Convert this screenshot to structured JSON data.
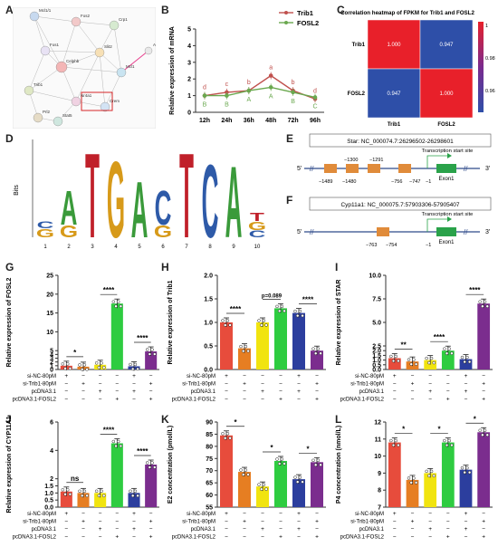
{
  "panel_labels": [
    "A",
    "B",
    "C",
    "D",
    "E",
    "F",
    "G",
    "H",
    "I",
    "J",
    "K",
    "L"
  ],
  "network": {
    "nodes": [
      "Mcl1/1",
      "Fos2",
      "Crp1",
      "Ace2b",
      "Fos1",
      "Slit2",
      "Celphb",
      "Mcl1",
      "Trib1",
      "Nr4a1",
      "Crem",
      "Prl2",
      "Stat5",
      "Egr1"
    ],
    "colors": {
      "edge": "#9a9a9a",
      "highlight_box": "#d62728",
      "highlight_edge": "#e83e8c"
    }
  },
  "gene_panel_c": [
    "Trib1",
    "FOSL2"
  ],
  "motif": {
    "ylabel": "Bits",
    "positions": [
      "1",
      "2",
      "3",
      "4",
      "5",
      "6",
      "7",
      "8",
      "9",
      "10"
    ]
  },
  "gene_struct": [
    {
      "title": "Star: NC_000074.7:26296502-26298601",
      "tss": "Transcription start site",
      "ends": [
        "5'",
        "3'"
      ],
      "exon": "Exon1",
      "labels_top": [
        "−1300",
        "−1291"
      ],
      "labels_bottom": [
        "−1489",
        "−1480",
        "−756",
        "−747",
        "−1"
      ]
    },
    {
      "title": "Cyp11a1: NC_000075.7:57903306-57905407",
      "tss": "Transcription start site",
      "ends": [
        "5'",
        "3'"
      ],
      "exon": "Exon1",
      "labels_bottom": [
        "−763",
        "−754",
        "−1"
      ]
    }
  ],
  "group_rows": {
    "labels_four": [
      "si-NC-80pM",
      "si-Trib1-80pM",
      "pcDNA3.1",
      "pcDNA3.1-FOSL2"
    ],
    "signs": [
      [
        "+",
        "−",
        "−",
        "−",
        "+",
        "−"
      ],
      [
        "−",
        "+",
        "−",
        "−",
        "−",
        "+"
      ],
      [
        "−",
        "−",
        "+",
        "−",
        "+",
        "−"
      ],
      [
        "−",
        "−",
        "−",
        "+",
        "−",
        "+"
      ]
    ]
  },
  "chart_data": [
    {
      "panel": "B",
      "type": "line",
      "x": [
        "12h",
        "24h",
        "36h",
        "48h",
        "72h",
        "96h"
      ],
      "ylabel": "Relative expression of mRNA",
      "ylim": [
        0,
        5
      ],
      "yticks": [
        "0",
        "1",
        "2",
        "3",
        "4",
        "5"
      ],
      "series": [
        {
          "name": "Trib1",
          "color": "#c0504d",
          "values": [
            1.0,
            1.2,
            1.3,
            2.2,
            1.3,
            0.8
          ],
          "letters": [
            "d",
            "c",
            "b",
            "a",
            "b",
            "d"
          ]
        },
        {
          "name": "FOSL2",
          "color": "#6aa84f",
          "values": [
            1.0,
            1.0,
            1.3,
            1.5,
            1.2,
            0.9
          ],
          "letters": [
            "B",
            "B",
            "A",
            "A",
            "B",
            "C"
          ]
        }
      ]
    },
    {
      "panel": "C",
      "type": "heatmap",
      "title": "Correlation heatmap of FPKM for Trib1 and FOSL2",
      "rows": [
        "Trib1",
        "FOSL2"
      ],
      "cols": [
        "Trib1",
        "FOSL2"
      ],
      "values": [
        [
          "1.000",
          "0.947"
        ],
        [
          "0.947",
          "1.000"
        ]
      ],
      "colorbar_ticks": [
        "1",
        "0.98",
        "0.96"
      ],
      "colors": {
        "high": "#e8202a",
        "low": "#2e4fa8"
      }
    },
    {
      "panel": "G",
      "type": "bar",
      "ylabel": "Relative expression of FOSL2",
      "ylim": [
        0,
        25
      ],
      "yticks": [
        "0",
        "1",
        "2",
        "3",
        "4",
        "5",
        "10",
        "15",
        "20",
        "25"
      ],
      "values": [
        1.0,
        0.75,
        1.25,
        17.5,
        0.85,
        4.8
      ],
      "colors": [
        "#e74c3c",
        "#e67e22",
        "#f1e40f",
        "#2ecc40",
        "#2c3e9e",
        "#7b2d8e"
      ],
      "sig": [
        {
          "text": "*",
          "pair": [
            0,
            1
          ]
        },
        {
          "text": "****",
          "pair": [
            2,
            3
          ]
        },
        {
          "text": "****",
          "pair": [
            4,
            5
          ]
        }
      ]
    },
    {
      "panel": "H",
      "type": "bar",
      "ylabel": "Relative expression of Trib1",
      "ylim": [
        0,
        2.0
      ],
      "yticks": [
        "0.0",
        "0.5",
        "1.0",
        "1.5",
        "2.0"
      ],
      "values": [
        1.0,
        0.45,
        1.0,
        1.3,
        1.2,
        0.4
      ],
      "colors": [
        "#e74c3c",
        "#e67e22",
        "#f1e40f",
        "#2ecc40",
        "#2c3e9e",
        "#7b2d8e"
      ],
      "sig": [
        {
          "text": "****",
          "pair": [
            0,
            1
          ]
        },
        {
          "text": "p=0.089",
          "pair": [
            2,
            3
          ]
        },
        {
          "text": "****",
          "pair": [
            4,
            5
          ]
        }
      ]
    },
    {
      "panel": "I",
      "type": "bar",
      "ylabel": "Relative expression of STAR",
      "ylim": [
        0,
        10
      ],
      "yticks": [
        "0.0",
        "0.5",
        "1.0",
        "1.5",
        "2.0",
        "2.5",
        "5.0",
        "7.5",
        "10.0"
      ],
      "values": [
        1.2,
        0.85,
        1.0,
        2.0,
        1.1,
        7.0
      ],
      "colors": [
        "#e74c3c",
        "#e67e22",
        "#f1e40f",
        "#2ecc40",
        "#2c3e9e",
        "#7b2d8e"
      ],
      "sig": [
        {
          "text": "**",
          "pair": [
            0,
            1
          ]
        },
        {
          "text": "****",
          "pair": [
            2,
            3
          ]
        },
        {
          "text": "****",
          "pair": [
            4,
            5
          ]
        }
      ]
    },
    {
      "panel": "J",
      "type": "bar",
      "ylabel": "Relative expression of CYP11A1",
      "ylim": [
        0,
        6
      ],
      "yticks": [
        "0.0",
        "0.5",
        "1.0",
        "1.5",
        "2",
        "4",
        "6"
      ],
      "values": [
        1.1,
        1.0,
        1.0,
        4.5,
        1.0,
        3.0
      ],
      "colors": [
        "#e74c3c",
        "#e67e22",
        "#f1e40f",
        "#2ecc40",
        "#2c3e9e",
        "#7b2d8e"
      ],
      "sig": [
        {
          "text": "ns",
          "pair": [
            0,
            1
          ]
        },
        {
          "text": "****",
          "pair": [
            2,
            3
          ]
        },
        {
          "text": "****",
          "pair": [
            4,
            5
          ]
        }
      ]
    },
    {
      "panel": "K",
      "type": "bar",
      "ylabel": "E2 concentration (pmol/L)",
      "ylim": [
        55,
        90
      ],
      "yticks": [
        "55",
        "60",
        "65",
        "70",
        "75",
        "80",
        "85",
        "90"
      ],
      "values": [
        84.5,
        69.5,
        63.5,
        74.0,
        66.5,
        73.5
      ],
      "colors": [
        "#e74c3c",
        "#e67e22",
        "#f1e40f",
        "#2ecc40",
        "#2c3e9e",
        "#7b2d8e"
      ],
      "sig": [
        {
          "text": "*",
          "pair": [
            0,
            1
          ]
        },
        {
          "text": "*",
          "pair": [
            2,
            3
          ]
        },
        {
          "text": "*",
          "pair": [
            4,
            5
          ]
        }
      ]
    },
    {
      "panel": "L",
      "type": "bar",
      "ylabel": "P4 concentration (nmol/L)",
      "ylim": [
        7,
        12
      ],
      "yticks": [
        "7",
        "8",
        "9",
        "10",
        "11",
        "12"
      ],
      "values": [
        10.8,
        8.6,
        9.0,
        10.8,
        9.2,
        11.4
      ],
      "colors": [
        "#e74c3c",
        "#e67e22",
        "#f1e40f",
        "#2ecc40",
        "#2c3e9e",
        "#7b2d8e"
      ],
      "sig": [
        {
          "text": "*",
          "pair": [
            0,
            1
          ]
        },
        {
          "text": "*",
          "pair": [
            2,
            3
          ]
        },
        {
          "text": "*",
          "pair": [
            4,
            5
          ]
        }
      ]
    }
  ]
}
